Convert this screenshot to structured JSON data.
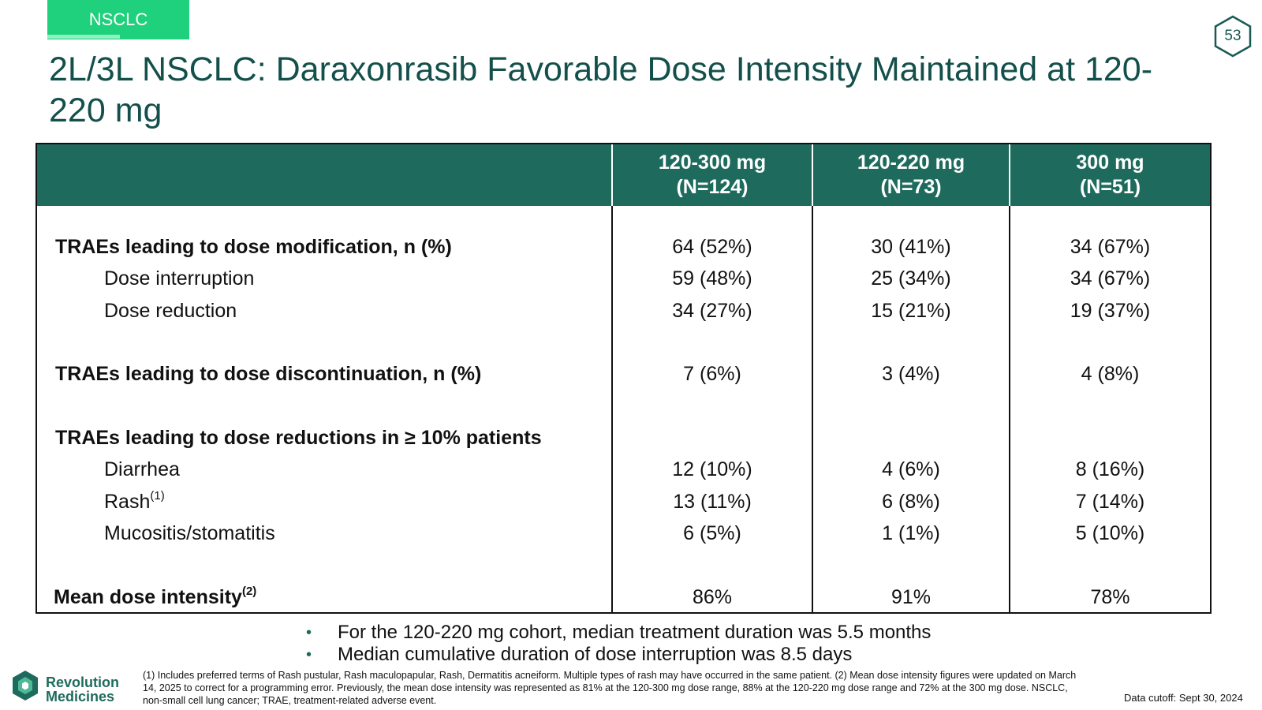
{
  "tag": {
    "label": "NSCLC",
    "color": "#1fd07c"
  },
  "page_number": "53",
  "title": "2L/3L NSCLC: Daraxonrasib Favorable Dose Intensity Maintained at 120-220 mg",
  "table": {
    "header_color": "#1e6b5d",
    "columns": [
      {
        "line1": "120-300 mg",
        "line2": "(N=124)"
      },
      {
        "line1": "120-220 mg",
        "line2": "(N=73)"
      },
      {
        "line1": "300 mg",
        "line2": "(N=51)"
      }
    ],
    "rows": {
      "mod": {
        "label": "TRAEs leading to dose modification, n (%)",
        "v": [
          "64 (52%)",
          "30 (41%)",
          "34 (67%)"
        ]
      },
      "interrupt": {
        "label": "Dose interruption",
        "v": [
          "59 (48%)",
          "25 (34%)",
          "34 (67%)"
        ]
      },
      "reduct": {
        "label": "Dose reduction",
        "v": [
          "34 (27%)",
          "15 (21%)",
          "19 (37%)"
        ]
      },
      "discont": {
        "label": "TRAEs leading to dose discontinuation, n (%)",
        "v": [
          "7 (6%)",
          "3 (4%)",
          "4 (8%)"
        ]
      },
      "red10": {
        "label": "TRAEs leading to dose reductions in ≥ 10% patients"
      },
      "diarrhea": {
        "label": "Diarrhea",
        "v": [
          "12 (10%)",
          "4 (6%)",
          "8 (16%)"
        ]
      },
      "rash": {
        "label": "Rash",
        "sup": "(1)",
        "v": [
          "13 (11%)",
          "6 (8%)",
          "7 (14%)"
        ]
      },
      "mucositis": {
        "label": "Mucositis/stomatitis",
        "v": [
          "6 (5%)",
          "1 (1%)",
          "5 (10%)"
        ]
      },
      "intensity": {
        "label": "Mean dose intensity",
        "sup": "(2)",
        "v": [
          "86%",
          "91%",
          "78%"
        ]
      }
    }
  },
  "bullets": [
    "For the 120-220 mg cohort, median treatment duration was 5.5 months",
    "Median cumulative duration of dose interruption was 8.5 days"
  ],
  "logo": {
    "line1": "Revolution",
    "line2": "Medicines"
  },
  "footnote": "(1) Includes preferred terms of Rash pustular, Rash maculopapular, Rash, Dermatitis acneiform. Multiple types of rash may have occurred in the same patient. (2) Mean dose intensity figures were updated on March 14, 2025 to correct for a programming error. Previously, the mean dose intensity was represented as 81% at the 120-300 mg dose range, 88% at the 120-220 mg dose range and 72% at the 300 mg dose. NSCLC, non-small cell lung cancer; TRAE, treatment-related adverse event.",
  "data_cutoff": "Data cutoff: Sept 30, 2024"
}
